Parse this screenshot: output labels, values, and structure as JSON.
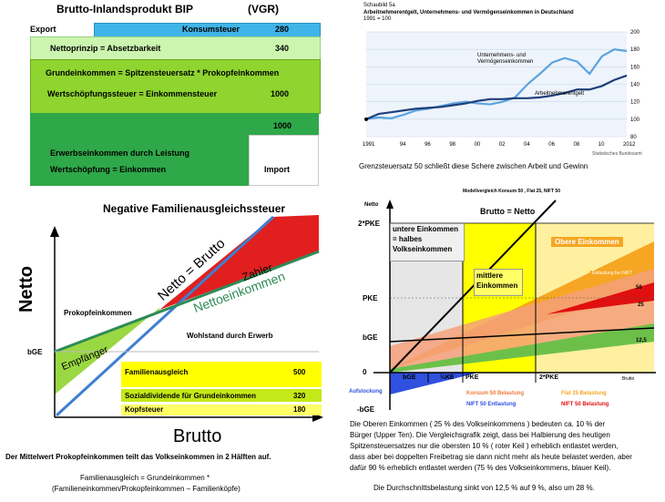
{
  "q1": {
    "title": "Brutto-Inlandsprodukt BIP",
    "vgr": "(VGR)",
    "export": "Export",
    "konsumsteuer": "Konsumsteuer",
    "konsumsteuer_val": "280",
    "nettoprinzip": "Nettoprinzip = Absetzbarkeit",
    "nettoprinzip_val": "340",
    "grundeinkommen": "Grundeinkommen = Spitzensteuersatz * Prokopfeinkommen",
    "wertschoepfungssteuer": "Wertschöpfungssteuer = Einkommensteuer",
    "wertschoepfungssteuer_val": "1000",
    "val_1000b": "1000",
    "erwerbseinkommen": "Erwerbseinkommen durch Leistung",
    "wertschoepfung": "Wertschöpfung = Einkommen",
    "import": "Import",
    "colors": {
      "blue": "#3fb5e8",
      "light_green": "#ccf5b0",
      "green": "#8fd42f",
      "dark_green": "#2fa84a"
    }
  },
  "q2": {
    "schaubild": "Schaubild 5a",
    "title": "Arbeitnehmerentgelt, Unternehmens- und Vermögenseinkommen in Deutschland",
    "subtitle": "1991 = 100",
    "series_label_1": "Unternehmens- und",
    "series_label_1b": "Vermögenseinkommen",
    "series_label_2": "Arbeitnehmerentgelt",
    "source": "Statistisches Bundesamt",
    "caption": "Grenzsteuersatz 50 schließt diese Schere zwischen Arbeit und Gewinn",
    "chart_data": {
      "type": "line",
      "x": [
        1991,
        1992,
        1993,
        1994,
        1995,
        1996,
        1997,
        1998,
        1999,
        2000,
        2001,
        2002,
        2003,
        2004,
        2005,
        2006,
        2007,
        2008,
        2009,
        2010,
        2011,
        2012
      ],
      "x_tick_labels": [
        "1991",
        "94",
        "96",
        "98",
        "00",
        "02",
        "04",
        "06",
        "08",
        "10",
        "2012"
      ],
      "ylim": [
        80,
        200
      ],
      "y_ticks": [
        80,
        100,
        120,
        140,
        160,
        180,
        200
      ],
      "series": [
        {
          "name": "Unternehmens- und Vermögenseinkommen",
          "color": "#5ba3e0",
          "values": [
            100,
            102,
            101,
            105,
            110,
            112,
            115,
            118,
            120,
            118,
            117,
            120,
            125,
            140,
            152,
            165,
            170,
            166,
            152,
            172,
            180,
            178
          ]
        },
        {
          "name": "Arbeitnehmerentgelt",
          "color": "#1f3f7a",
          "values": [
            100,
            106,
            108,
            110,
            112,
            113,
            114,
            116,
            118,
            121,
            123,
            123,
            124,
            124,
            125,
            127,
            130,
            134,
            134,
            138,
            145,
            150
          ]
        }
      ]
    }
  },
  "q3": {
    "title": "Negative Familienausgleichssteuer",
    "axis_y": "Netto",
    "axis_x": "Brutto",
    "netto_brutto": "Netto = Brutto",
    "zahler": "Zahler",
    "nettoeinkommen": "Nettoeinkommen",
    "prokopf": "Prokopfeinkommen",
    "wohlstand": "Wohlstand durch Erwerb",
    "empfaenger": "Empfänger",
    "bge": "bGE",
    "familienausgleich": "Familienausgleich",
    "familienausgleich_val": "500",
    "sozialdividende": "Sozialdividende für Grundeinkommen",
    "sozialdividende_val": "320",
    "kopfsteuer": "Kopfsteuer",
    "kopfsteuer_val": "180",
    "text1": "Der Mittelwert Prokopfeinkommen teilt das Volkseinkommen in 2 Hälften auf.",
    "text2": "Familienausgleich = Grundeinkommen *",
    "text3": "(Familieneinkommen/Prokopfeinkommen – Familienköpfe)"
  },
  "q4": {
    "title": "Modellvergleich Konsum 50 , Flat 25, NIFT 50",
    "netto": "Netto",
    "brutto_netto": "Brutto = Netto",
    "pke2": "2*PKE",
    "pke": "PKE",
    "bge": "bGE",
    "zero": "0",
    "neg_bge": "-bGE",
    "untere_1": "untere Einkommen",
    "untere_2": "= halbes",
    "untere_3": "Volkseinkommen",
    "mittlere_1": "mittlere",
    "mittlere_2": "Einkommen",
    "obere": "Obere Einkommen",
    "x_bge": "bGE",
    "x_halfpke": "½KE",
    "x_pke": "PKE",
    "x_2pke": "2*PKE",
    "x_brutto": "Brutto",
    "aufstockung": "Aufstockung",
    "v50": "50",
    "v25": "25",
    "v125": "12,5",
    "small_label": "Entlastung bei NIFT",
    "legend_konsum": "Konsum 50 Belastung",
    "legend_flat": "Flat 25 Belastung",
    "legend_nift_e": "NIFT 50 Entlastung",
    "legend_nift_b": "NIFT 50 Belastung",
    "text1": "Die Oberen Einkommen ( 25 % des Volkseinkommens ) bedeuten ca. 10 % der",
    "text2": "Bürger (Upper Ten). Die Vergleichsgrafik zeigt, dass bei Halbierung des heutigen",
    "text3": "Spitzensteuersatzes nur die obersten 10 % ( roter Keil ) erheblich entlastet werden,",
    "text4": "dass aber bei doppelten Freibetrag sie dann nicht mehr als heute belastet werden, aber",
    "text5": "dafür 90 % erheblich entlastet werden (75 % des Volkseinkommens, blauer Keil).",
    "text6": "Die Durchschnittsbelastung sinkt von 12,5 % auf 9 %, also um 28 %."
  }
}
